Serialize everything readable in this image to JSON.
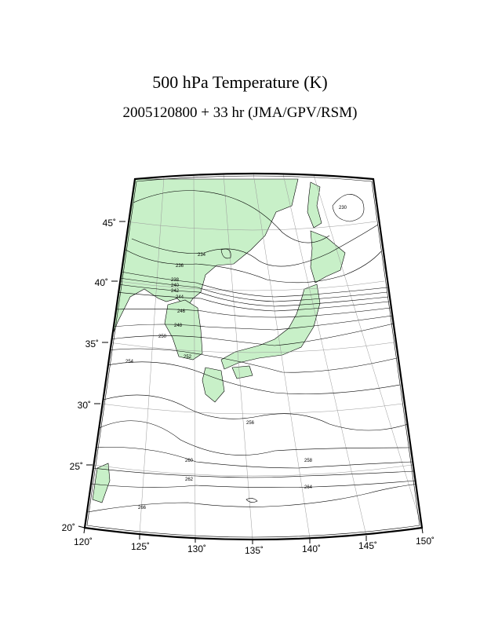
{
  "title": "500 hPa Temperature (K)",
  "subtitle": "2005120800 + 33 hr (JMA/GPV/RSM)",
  "map": {
    "projection": "conic",
    "lon_range": [
      120,
      150
    ],
    "lat_range": [
      20,
      47.5
    ],
    "land_color": "#c8f0c8",
    "line_color": "#000000",
    "lon_tick_labels": [
      "120˚",
      "125˚",
      "130˚",
      "135˚",
      "140˚",
      "145˚",
      "150˚"
    ],
    "lat_tick_labels": [
      "20˚",
      "25˚",
      "30˚",
      "35˚",
      "40˚",
      "45˚"
    ],
    "contour_labels": [
      "230",
      "234",
      "236",
      "238",
      "240",
      "242",
      "244",
      "246",
      "248",
      "250",
      "252",
      "254",
      "256",
      "258",
      "260",
      "262",
      "264",
      "266"
    ]
  }
}
